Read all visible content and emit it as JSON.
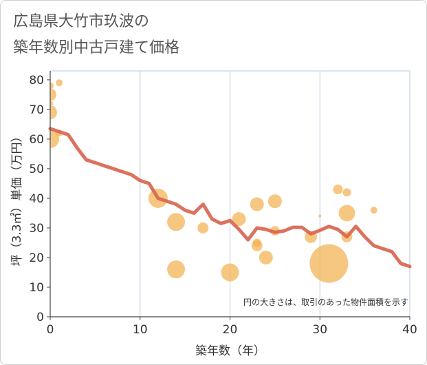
{
  "title_line1": "広島県大竹市玖波の",
  "title_line2": "築年数別中古戸建て価格",
  "chart_data": {
    "type": "scatter+line",
    "title": "広島県大竹市玖波の築年数別中古戸建て価格",
    "xlabel": "築年数（年）",
    "ylabel": "坪（3.3㎡）単価（万円）",
    "xlim": [
      0,
      40
    ],
    "ylim": [
      0,
      83
    ],
    "xticks": [
      0,
      10,
      20,
      30,
      40
    ],
    "yticks": [
      0,
      10,
      20,
      30,
      40,
      50,
      60,
      70,
      80
    ],
    "grid": true,
    "note": "円の大きさは、取引のあった物件面積を示す",
    "colors": {
      "bubble": "#f2b14f",
      "line": "#d9664f",
      "grid": "#b9cbe0"
    },
    "scatter": [
      {
        "x": 0,
        "y": 78,
        "size": 5
      },
      {
        "x": 0,
        "y": 75,
        "size": 9
      },
      {
        "x": 0,
        "y": 72,
        "size": 4
      },
      {
        "x": 0,
        "y": 69,
        "size": 10
      },
      {
        "x": 0,
        "y": 60,
        "size": 13
      },
      {
        "x": 1,
        "y": 79,
        "size": 5
      },
      {
        "x": 1,
        "y": 62,
        "size": 5
      },
      {
        "x": 12,
        "y": 40,
        "size": 14
      },
      {
        "x": 14,
        "y": 32,
        "size": 13
      },
      {
        "x": 14,
        "y": 16,
        "size": 13
      },
      {
        "x": 17,
        "y": 30,
        "size": 8
      },
      {
        "x": 20,
        "y": 15,
        "size": 13
      },
      {
        "x": 21,
        "y": 33,
        "size": 10
      },
      {
        "x": 23,
        "y": 38,
        "size": 10
      },
      {
        "x": 23,
        "y": 25,
        "size": 6
      },
      {
        "x": 23,
        "y": 24,
        "size": 8
      },
      {
        "x": 24,
        "y": 20,
        "size": 10
      },
      {
        "x": 25,
        "y": 39,
        "size": 10
      },
      {
        "x": 25,
        "y": 29,
        "size": 7
      },
      {
        "x": 29,
        "y": 27,
        "size": 9
      },
      {
        "x": 30,
        "y": 34,
        "size": 2
      },
      {
        "x": 31,
        "y": 18,
        "size": 28
      },
      {
        "x": 32,
        "y": 43,
        "size": 7
      },
      {
        "x": 33,
        "y": 42,
        "size": 6
      },
      {
        "x": 33,
        "y": 35,
        "size": 12
      },
      {
        "x": 33,
        "y": 27,
        "size": 8
      },
      {
        "x": 36,
        "y": 36,
        "size": 5
      }
    ],
    "line": {
      "x": [
        0,
        1,
        2,
        3,
        4,
        5,
        6,
        7,
        8,
        9,
        10,
        11,
        12,
        13,
        14,
        15,
        16,
        17,
        18,
        19,
        20,
        21,
        22,
        23,
        24,
        25,
        26,
        27,
        28,
        29,
        30,
        31,
        32,
        33,
        34,
        35,
        36,
        37,
        38,
        39,
        40
      ],
      "y": [
        63.5,
        62.5,
        61.5,
        57,
        53,
        52,
        51,
        50,
        49,
        48,
        46,
        45,
        40,
        39,
        38,
        36,
        35,
        38,
        33,
        31.5,
        32.5,
        29.5,
        26,
        30,
        29.5,
        28.5,
        29,
        30.2,
        30.2,
        28,
        29.2,
        30.5,
        29.5,
        27,
        30.5,
        27,
        24,
        23,
        22,
        18,
        17
      ]
    }
  }
}
